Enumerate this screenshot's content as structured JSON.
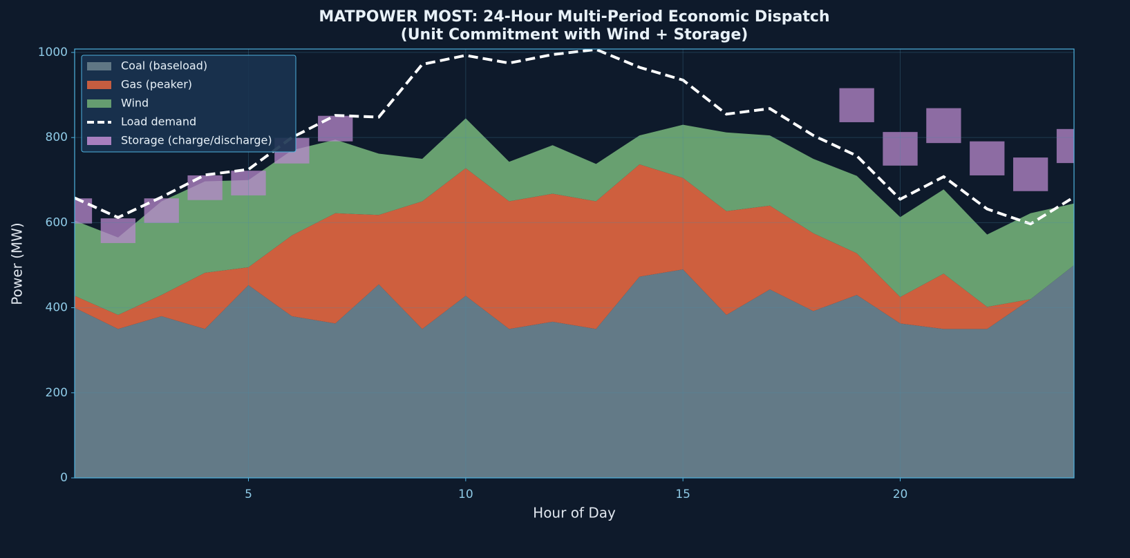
{
  "chart_data": {
    "type": "stacked-area",
    "title": "MATPOWER MOST: 24-Hour Multi-Period Economic Dispatch",
    "subtitle": "(Unit Commitment with Wind + Storage)",
    "x_label": "Hour of Day",
    "y_label": "Power (MW)",
    "x": [
      1,
      2,
      3,
      4,
      5,
      6,
      7,
      8,
      9,
      10,
      11,
      12,
      13,
      14,
      15,
      16,
      17,
      18,
      19,
      20,
      21,
      22,
      23,
      24
    ],
    "xlim": [
      1,
      24
    ],
    "xticks": [
      5,
      10,
      15,
      20
    ],
    "ylim": [
      0,
      1008
    ],
    "yticks": [
      0,
      200,
      400,
      600,
      800,
      1000
    ],
    "grid": true,
    "legend": "upper left",
    "series": [
      {
        "name": "Coal (baseload)",
        "color": "#687f8c",
        "values": [
          400,
          350,
          380,
          350,
          453,
          380,
          363,
          455,
          350,
          428,
          350,
          367,
          350,
          473,
          490,
          383,
          443,
          392,
          430,
          363,
          350,
          350,
          420,
          500
        ]
      },
      {
        "name": "Gas (peaker)",
        "color": "#d9633f",
        "values": [
          28,
          33,
          50,
          132,
          42,
          190,
          259,
          163,
          300,
          300,
          300,
          301,
          300,
          264,
          215,
          244,
          197,
          183,
          98,
          62,
          130,
          52,
          0,
          0
        ]
      },
      {
        "name": "Wind",
        "color": "#6ea874",
        "values": [
          177,
          182,
          220,
          215,
          205,
          200,
          173,
          144,
          100,
          117,
          93,
          114,
          88,
          68,
          125,
          185,
          165,
          175,
          182,
          188,
          198,
          170,
          202,
          145
        ]
      }
    ],
    "load": {
      "name": "Load demand",
      "color": "#ffffff",
      "values": [
        658,
        612,
        660,
        712,
        725,
        800,
        852,
        848,
        972,
        993,
        975,
        995,
        1007,
        965,
        935,
        855,
        868,
        805,
        757,
        655,
        708,
        632,
        597,
        660
      ]
    },
    "storage": {
      "name": "Storage (charge/discharge)",
      "color": "#b888cc",
      "low": [
        598,
        552,
        599,
        653,
        664,
        739,
        791,
        null,
        null,
        null,
        null,
        null,
        null,
        null,
        null,
        null,
        null,
        null,
        836,
        734,
        787,
        711,
        674,
        740
      ],
      "high": [
        657,
        610,
        657,
        711,
        722,
        799,
        851,
        null,
        null,
        null,
        null,
        null,
        null,
        null,
        null,
        null,
        null,
        null,
        916,
        813,
        869,
        791,
        753,
        820
      ]
    }
  }
}
